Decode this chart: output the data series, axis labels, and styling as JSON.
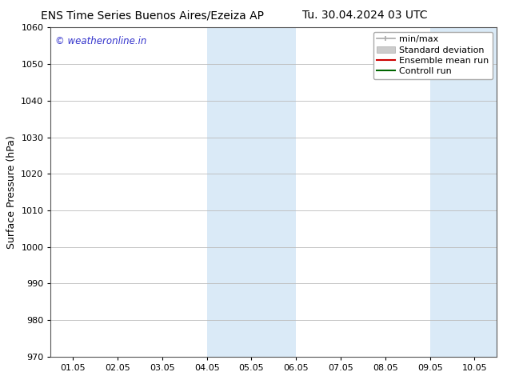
{
  "title_left": "ENS Time Series Buenos Aires/Ezeiza AP",
  "title_right": "Tu. 30.04.2024 03 UTC",
  "ylabel": "Surface Pressure (hPa)",
  "ylim": [
    970,
    1060
  ],
  "yticks": [
    970,
    980,
    990,
    1000,
    1010,
    1020,
    1030,
    1040,
    1050,
    1060
  ],
  "xlim": [
    0,
    10
  ],
  "xtick_labels": [
    "01.05",
    "02.05",
    "03.05",
    "04.05",
    "05.05",
    "06.05",
    "07.05",
    "08.05",
    "09.05",
    "10.05"
  ],
  "xtick_positions": [
    0.5,
    1.5,
    2.5,
    3.5,
    4.5,
    5.5,
    6.5,
    7.5,
    8.5,
    9.5
  ],
  "shaded_regions": [
    {
      "x_start": 3.5,
      "x_end": 4.5,
      "color": "#daeaf7"
    },
    {
      "x_start": 4.5,
      "x_end": 5.5,
      "color": "#daeaf7"
    },
    {
      "x_start": 8.5,
      "x_end": 9.5,
      "color": "#daeaf7"
    },
    {
      "x_start": 9.5,
      "x_end": 10.0,
      "color": "#daeaf7"
    }
  ],
  "watermark_text": "© weatheronline.in",
  "watermark_color": "#3333cc",
  "watermark_fontsize": 8.5,
  "legend_entries": [
    {
      "label": "min/max",
      "color": "#aaaaaa",
      "type": "minmax"
    },
    {
      "label": "Standard deviation",
      "color": "#cccccc",
      "type": "band"
    },
    {
      "label": "Ensemble mean run",
      "color": "#cc0000",
      "type": "line"
    },
    {
      "label": "Controll run",
      "color": "#006600",
      "type": "line"
    }
  ],
  "background_color": "#ffffff",
  "grid_color": "#bbbbbb",
  "title_fontsize": 10,
  "axis_label_fontsize": 9,
  "tick_fontsize": 8,
  "legend_fontsize": 8
}
